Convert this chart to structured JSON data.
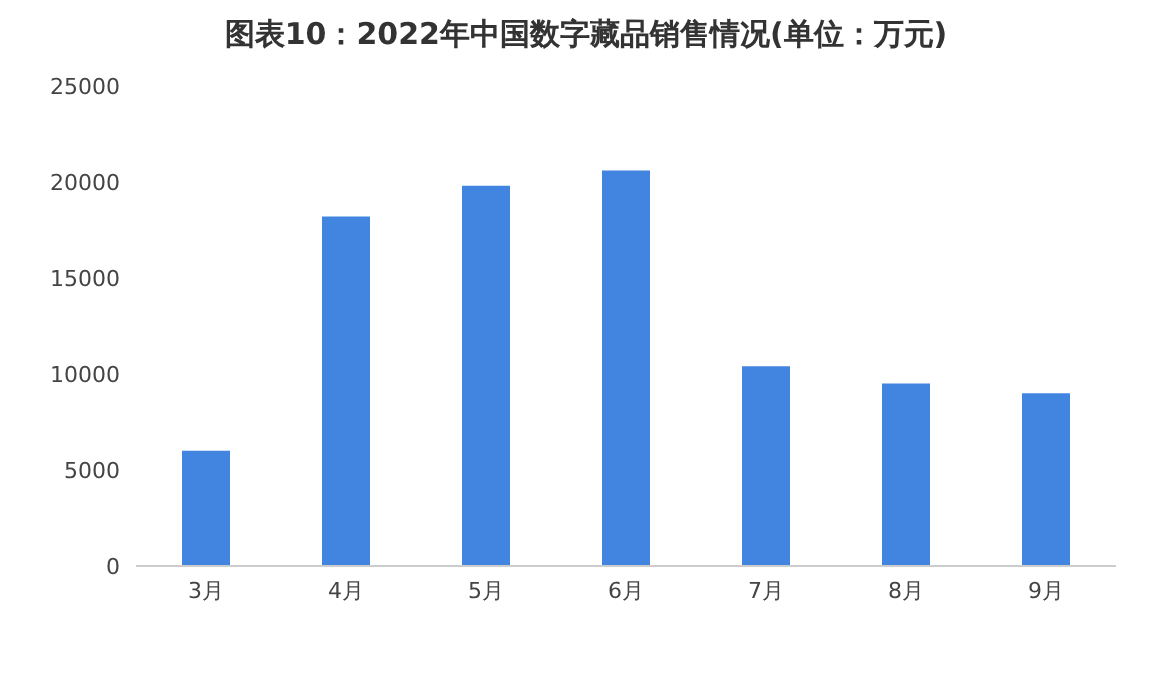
{
  "chart_data": {
    "type": "bar",
    "title": "图表10：2022年中国数字藏品销售情况(单位：万元)",
    "categories": [
      "3月",
      "4月",
      "5月",
      "6月",
      "7月",
      "8月",
      "9月"
    ],
    "values": [
      6000,
      18200,
      19800,
      20600,
      10400,
      9500,
      9000
    ],
    "color": "#4285e0",
    "ylim": [
      0,
      25000
    ],
    "yticks": [
      0,
      5000,
      10000,
      15000,
      20000,
      25000
    ],
    "grid": false
  }
}
